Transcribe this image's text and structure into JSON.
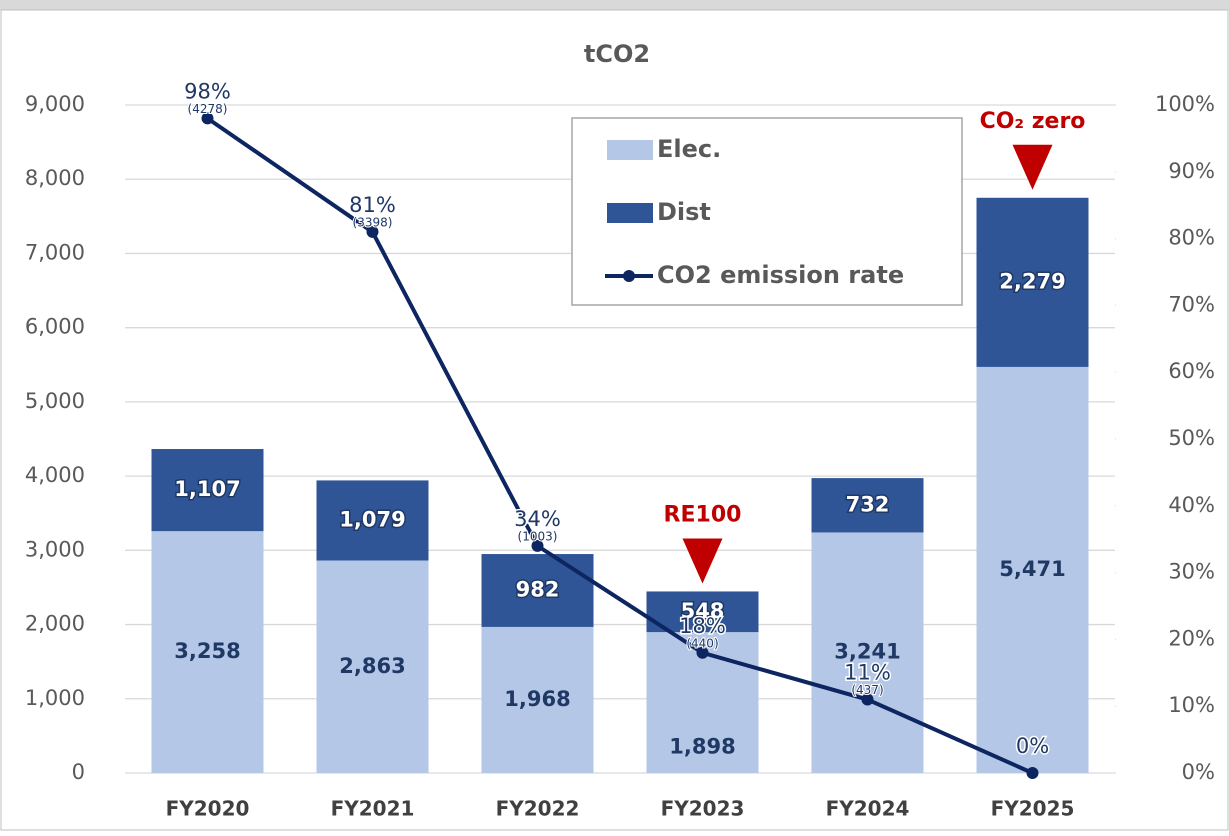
{
  "chart_data": {
    "type": "bar",
    "stacked": true,
    "title": "tCO2",
    "categories": [
      "FY2020",
      "FY2021",
      "FY2022",
      "FY2023",
      "FY2024",
      "FY2025"
    ],
    "series": [
      {
        "name": "Elec.",
        "color": "#b4c7e7",
        "values": [
          3258,
          2863,
          1968,
          1898,
          3241,
          5471
        ],
        "value_labels": [
          "3,258",
          "2,863",
          "1,968",
          "1,898",
          "3,241",
          "5,471"
        ]
      },
      {
        "name": "Dist",
        "color": "#2f5597",
        "values": [
          1107,
          1079,
          982,
          548,
          732,
          2279
        ],
        "value_labels": [
          "1,107",
          "1,079",
          "982",
          "548",
          "732",
          "2,279"
        ]
      },
      {
        "name": "CO2 emission rate",
        "type": "line",
        "axis": "y2",
        "color": "#0d2560",
        "values": [
          98,
          81,
          34,
          18,
          11,
          0
        ],
        "value_labels": [
          "98%",
          "81%",
          "34%",
          "18%",
          "11%",
          "0%"
        ],
        "value_notes": [
          "(4278)",
          "(3398)",
          "(1003)",
          "(440)",
          "(437)",
          null
        ]
      }
    ],
    "ylim": [
      0,
      9000
    ],
    "yticks": [
      0,
      {
        "value": 1000,
        "label": "1,000"
      },
      {
        "value": 2000,
        "label": "2,000"
      },
      {
        "value": 3000,
        "label": "3,000"
      },
      {
        "value": 4000,
        "label": "4,000"
      },
      {
        "value": 5000,
        "label": "5,000"
      },
      {
        "value": 6000,
        "label": "6,000"
      },
      {
        "value": 7000,
        "label": "7,000"
      },
      {
        "value": 8000,
        "label": "8,000"
      },
      {
        "value": 9000,
        "label": "9,000"
      }
    ],
    "y2lim": [
      0,
      100
    ],
    "y2ticks": [
      {
        "value": 0,
        "label": "0%"
      },
      {
        "value": 10,
        "label": "10%"
      },
      {
        "value": 20,
        "label": "20%"
      },
      {
        "value": 30,
        "label": "30%"
      },
      {
        "value": 40,
        "label": "40%"
      },
      {
        "value": 50,
        "label": "50%"
      },
      {
        "value": 60,
        "label": "60%"
      },
      {
        "value": 70,
        "label": "70%"
      },
      {
        "value": 80,
        "label": "80%"
      },
      {
        "value": 90,
        "label": "90%"
      },
      {
        "value": 100,
        "label": "100%"
      }
    ],
    "grid": true,
    "legend": "top-right",
    "annotations": [
      {
        "text": "RE100",
        "category": 3,
        "color": "#c00000"
      },
      {
        "text": "CO₂ zero",
        "category": 5,
        "color": "#c00000"
      }
    ]
  }
}
